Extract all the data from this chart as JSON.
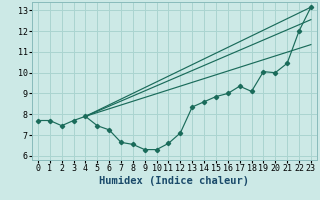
{
  "background_color": "#cce9e6",
  "grid_color": "#aad4d0",
  "line_color": "#1a6b5a",
  "xlabel": "Humidex (Indice chaleur)",
  "xlabel_fontsize": 7.5,
  "tick_fontsize": 6.0,
  "xlim": [
    -0.5,
    23.5
  ],
  "ylim": [
    5.8,
    13.4
  ],
  "yticks": [
    6,
    7,
    8,
    9,
    10,
    11,
    12,
    13
  ],
  "xticks": [
    0,
    1,
    2,
    3,
    4,
    5,
    6,
    7,
    8,
    9,
    10,
    11,
    12,
    13,
    14,
    15,
    16,
    17,
    18,
    19,
    20,
    21,
    22,
    23
  ],
  "line1_x": [
    0,
    1,
    2,
    3,
    4,
    5,
    6,
    7,
    8,
    9,
    10,
    11,
    12,
    13,
    14,
    15,
    16,
    17,
    18,
    19,
    20,
    21,
    22,
    23
  ],
  "line1_y": [
    7.7,
    7.7,
    7.45,
    7.7,
    7.9,
    7.45,
    7.25,
    6.65,
    6.55,
    6.3,
    6.3,
    6.6,
    7.1,
    8.35,
    8.6,
    8.85,
    9.0,
    9.35,
    9.1,
    10.05,
    10.0,
    10.45,
    12.0,
    13.15
  ],
  "line2_end_y": 13.15,
  "line3_end_y": 12.55,
  "line4_end_y": 11.35,
  "converge_x": 4.0,
  "converge_y": 7.9,
  "end_x": 23
}
